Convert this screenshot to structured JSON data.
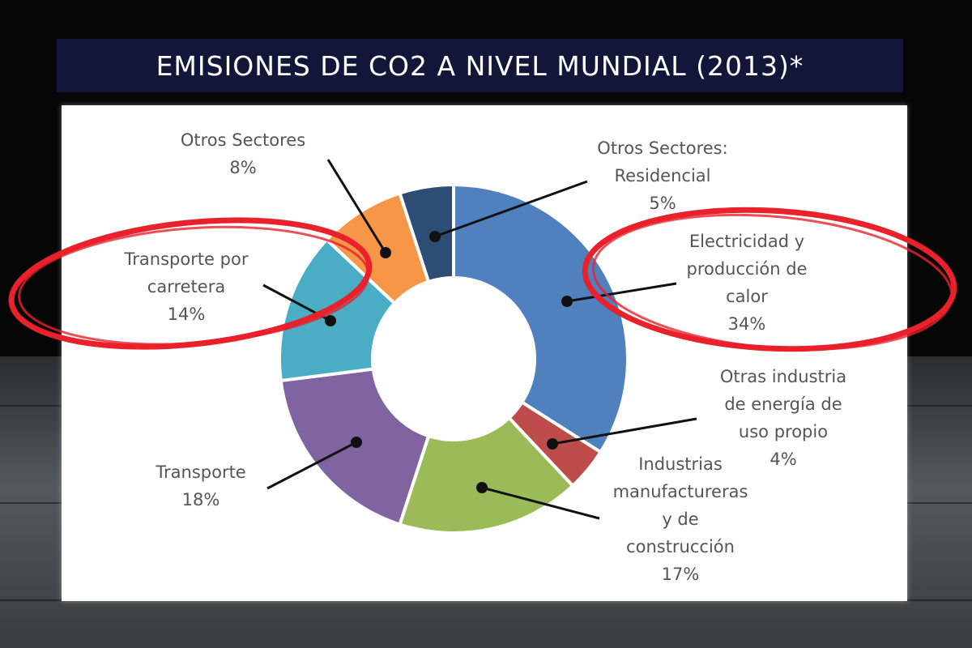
{
  "page": {
    "title": "EMISIONES DE CO2 A NIVEL MUNDIAL (2013)*"
  },
  "chart_data": {
    "type": "pie",
    "donut": true,
    "slices": [
      {
        "name": "Electricidad y producción de calor",
        "label_lines": [
          "Electricidad y",
          "producción de",
          "calor",
          "34%"
        ],
        "value": 34,
        "color": "#5080be",
        "highlighted": true
      },
      {
        "name": "Otras industria de energía de uso propio",
        "label_lines": [
          "Otras industria",
          "de energía de",
          "uso propio",
          "4%"
        ],
        "value": 4,
        "color": "#be4c4a",
        "highlighted": false
      },
      {
        "name": "Industrias manufactureras y de construcción",
        "label_lines": [
          "Industrias",
          "manufactureras",
          "y de",
          "construcción",
          "17%"
        ],
        "value": 17,
        "color": "#9bbb59",
        "highlighted": false
      },
      {
        "name": "Transporte",
        "label_lines": [
          "Transporte",
          "18%"
        ],
        "value": 18,
        "color": "#8064a2",
        "highlighted": false
      },
      {
        "name": "Transporte por carretera",
        "label_lines": [
          "Transporte por",
          "carretera",
          "14%"
        ],
        "value": 14,
        "color": "#4bacc6",
        "highlighted": true
      },
      {
        "name": "Otros Sectores",
        "label_lines": [
          "Otros Sectores",
          "8%"
        ],
        "value": 8,
        "color": "#f79646",
        "highlighted": false
      },
      {
        "name": "Otros Sectores: Residencial",
        "label_lines": [
          "Otros Sectores:",
          "Residencial",
          "5%"
        ],
        "value": 5,
        "color": "#2c4d75",
        "highlighted": false
      }
    ],
    "legend": "none",
    "annotation_color": "#e8212b"
  }
}
